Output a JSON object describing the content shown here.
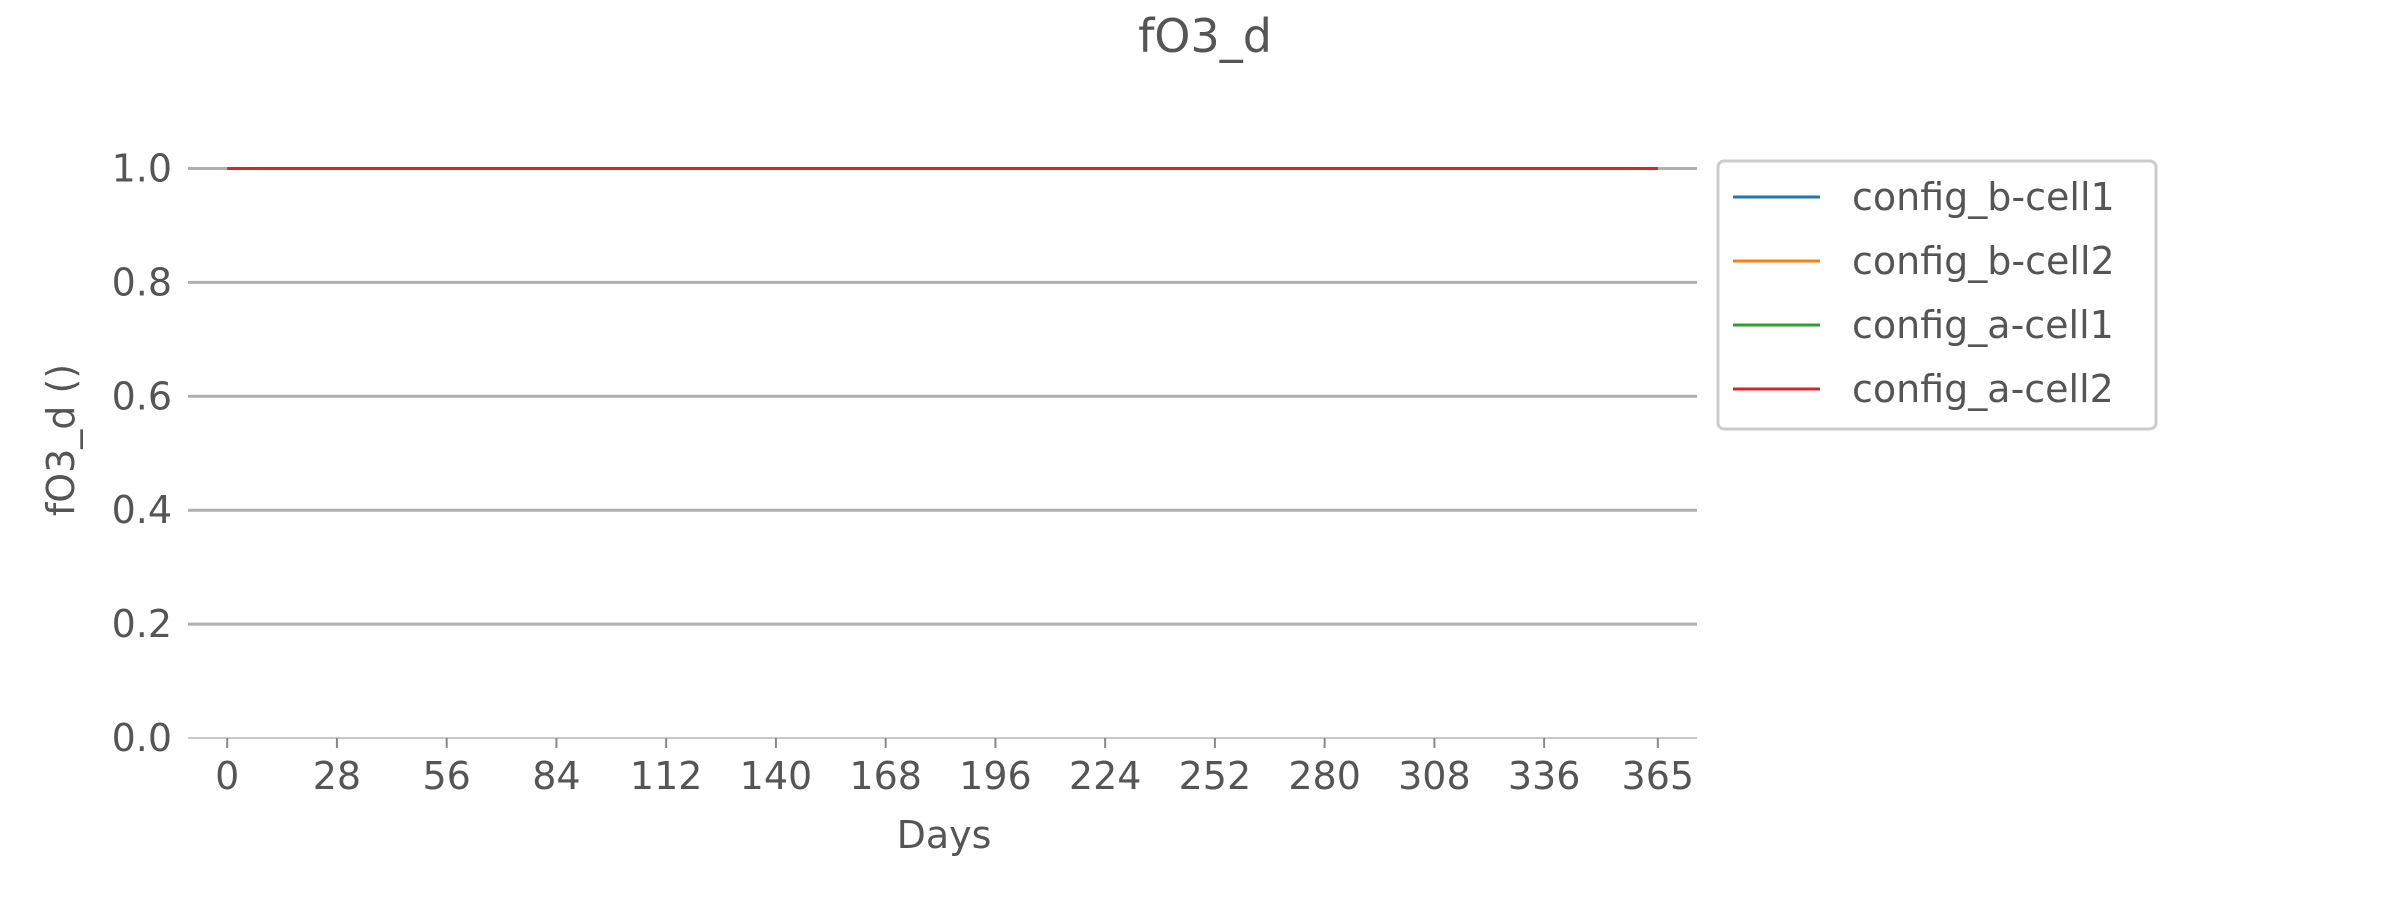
{
  "chart_data": {
    "type": "line",
    "title": "fO3_d",
    "xlabel": "Days",
    "ylabel": "fO3_d ()",
    "x_ticks": [
      0,
      28,
      56,
      84,
      112,
      140,
      168,
      196,
      224,
      252,
      280,
      308,
      336,
      365
    ],
    "y_ticks": [
      0.0,
      0.2,
      0.4,
      0.6,
      0.8,
      1.0
    ],
    "xlim": [
      -10,
      375
    ],
    "ylim": [
      0,
      1.05
    ],
    "grid": "horizontal",
    "legend_position": "outside-right-top",
    "series": [
      {
        "name": "config_b-cell1",
        "color": "#1f77b4",
        "x": [
          0,
          365
        ],
        "y": [
          1.0,
          1.0
        ]
      },
      {
        "name": "config_b-cell2",
        "color": "#ff7f0e",
        "x": [
          0,
          365
        ],
        "y": [
          1.0,
          1.0
        ]
      },
      {
        "name": "config_a-cell1",
        "color": "#2ca02c",
        "x": [
          0,
          365
        ],
        "y": [
          1.0,
          1.0
        ]
      },
      {
        "name": "config_a-cell2",
        "color": "#d62728",
        "x": [
          0,
          365
        ],
        "y": [
          1.0,
          1.0
        ]
      }
    ]
  }
}
